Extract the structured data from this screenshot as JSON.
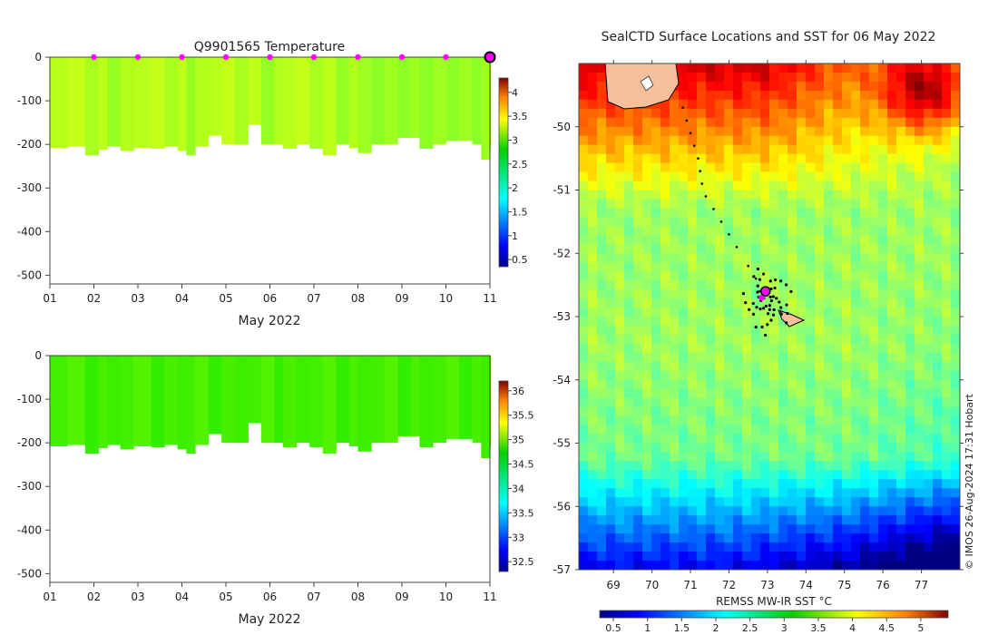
{
  "chart_data": [
    {
      "type": "heatmap",
      "title": "Q9901565  Temperature",
      "variable": "temperature",
      "xlabel": "May 2022",
      "ylabel": "",
      "x_ticks": [
        "01",
        "02",
        "03",
        "04",
        "05",
        "06",
        "07",
        "08",
        "09",
        "10",
        "11"
      ],
      "x_range": [
        1,
        11
      ],
      "y_ticks": [
        0,
        -100,
        -200,
        -300,
        -400,
        -500
      ],
      "y_range": [
        -520,
        0
      ],
      "colorbar_ticks": [
        "0.5",
        "1",
        "1.5",
        "2",
        "2.5",
        "3",
        "3.5",
        "4"
      ],
      "colorbar_range": [
        0.35,
        4.3
      ],
      "profile_depths": [
        {
          "day": 1.0,
          "depth": 208
        },
        {
          "day": 1.4,
          "depth": 205
        },
        {
          "day": 1.8,
          "depth": 225
        },
        {
          "day": 2.1,
          "depth": 212
        },
        {
          "day": 2.3,
          "depth": 205
        },
        {
          "day": 2.6,
          "depth": 215
        },
        {
          "day": 2.9,
          "depth": 208
        },
        {
          "day": 3.3,
          "depth": 210
        },
        {
          "day": 3.6,
          "depth": 205
        },
        {
          "day": 3.9,
          "depth": 215
        },
        {
          "day": 4.1,
          "depth": 225
        },
        {
          "day": 4.3,
          "depth": 205
        },
        {
          "day": 4.6,
          "depth": 180
        },
        {
          "day": 4.9,
          "depth": 200
        },
        {
          "day": 5.2,
          "depth": 200
        },
        {
          "day": 5.5,
          "depth": 155
        },
        {
          "day": 5.8,
          "depth": 200
        },
        {
          "day": 6.1,
          "depth": 200
        },
        {
          "day": 6.3,
          "depth": 210
        },
        {
          "day": 6.6,
          "depth": 200
        },
        {
          "day": 6.9,
          "depth": 210
        },
        {
          "day": 7.2,
          "depth": 225
        },
        {
          "day": 7.5,
          "depth": 200
        },
        {
          "day": 7.8,
          "depth": 208
        },
        {
          "day": 8.0,
          "depth": 220
        },
        {
          "day": 8.3,
          "depth": 200
        },
        {
          "day": 8.6,
          "depth": 200
        },
        {
          "day": 8.9,
          "depth": 185
        },
        {
          "day": 9.2,
          "depth": 185
        },
        {
          "day": 9.4,
          "depth": 210
        },
        {
          "day": 9.7,
          "depth": 200
        },
        {
          "day": 10.0,
          "depth": 192
        },
        {
          "day": 10.3,
          "depth": 192
        },
        {
          "day": 10.6,
          "depth": 200
        },
        {
          "day": 10.8,
          "depth": 235
        },
        {
          "day": 11.0,
          "depth": 210
        }
      ],
      "daily_markers": [
        2,
        3,
        4,
        5,
        6,
        7,
        8,
        9,
        10
      ],
      "latest_marker": 11.0
    },
    {
      "type": "heatmap",
      "title": "",
      "variable": "salinity",
      "xlabel": "May 2022",
      "ylabel": "",
      "x_ticks": [
        "01",
        "02",
        "03",
        "04",
        "05",
        "06",
        "07",
        "08",
        "09",
        "10",
        "11"
      ],
      "x_range": [
        1,
        11
      ],
      "y_ticks": [
        0,
        -100,
        -200,
        -300,
        -400,
        -500
      ],
      "y_range": [
        -520,
        0
      ],
      "colorbar_ticks": [
        "32.5",
        "33",
        "33.5",
        "34",
        "34.5",
        "35",
        "35.5",
        "36"
      ],
      "colorbar_range": [
        32.3,
        36.2
      ]
    },
    {
      "type": "heatmap",
      "title": "SealCTD Surface Locations and SST for 06 May 2022",
      "xlabel": "REMSS MW-IR SST °C",
      "x_ticks": [
        "69",
        "70",
        "71",
        "72",
        "73",
        "74",
        "75",
        "76",
        "77"
      ],
      "x_range": [
        68.1,
        78.0
      ],
      "y_ticks": [
        "-50",
        "-51",
        "-52",
        "-53",
        "-54",
        "-55",
        "-56",
        "-57"
      ],
      "y_range": [
        -57.0,
        -49.0
      ],
      "colorbar_ticks": [
        "0.5",
        "1",
        "1.5",
        "2",
        "2.5",
        "3",
        "3.5",
        "4",
        "4.5",
        "5"
      ],
      "colorbar_range": [
        0.3,
        5.4
      ],
      "track": [
        {
          "lon": 70.8,
          "lat": -49.7
        },
        {
          "lon": 70.9,
          "lat": -49.9
        },
        {
          "lon": 71.0,
          "lat": -50.1
        },
        {
          "lon": 71.1,
          "lat": -50.3
        },
        {
          "lon": 71.2,
          "lat": -50.5
        },
        {
          "lon": 71.25,
          "lat": -50.7
        },
        {
          "lon": 71.3,
          "lat": -50.9
        },
        {
          "lon": 71.4,
          "lat": -51.1
        },
        {
          "lon": 71.6,
          "lat": -51.3
        },
        {
          "lon": 71.8,
          "lat": -51.5
        },
        {
          "lon": 72.0,
          "lat": -51.7
        },
        {
          "lon": 72.2,
          "lat": -51.9
        },
        {
          "lon": 72.5,
          "lat": -52.2
        },
        {
          "lon": 72.7,
          "lat": -52.4
        },
        {
          "lon": 72.8,
          "lat": -52.6
        }
      ],
      "latest_position": {
        "lon": 72.95,
        "lat": -52.6
      },
      "colony_position": {
        "lon": 73.35,
        "lat": -52.95
      }
    }
  ],
  "credit": "© IMOS 26-Aug-2024 17:31 Hobart"
}
